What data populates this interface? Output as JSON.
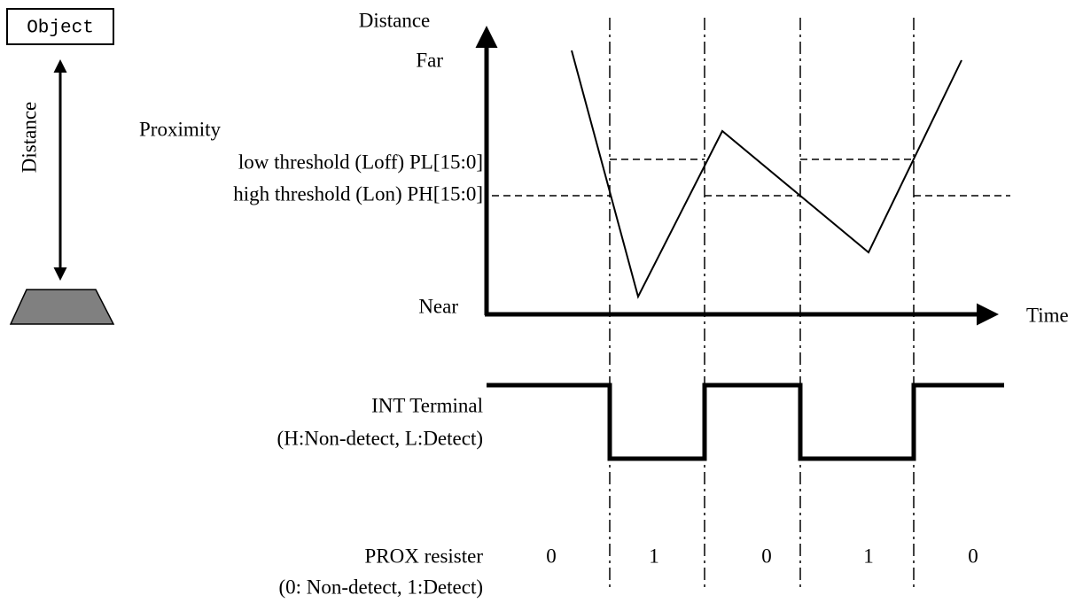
{
  "object_label": "Object",
  "left_axis_label": "Distance",
  "graph": {
    "y_axis_label": "Distance",
    "far_label": "Far",
    "near_label": "Near",
    "x_axis_label": "Time",
    "proximity_label": "Proximity",
    "low_threshold_label": "low threshold (Loff) PL[15:0]",
    "high_threshold_label": "high threshold (Lon) PH[15:0]"
  },
  "int_terminal": {
    "label": "INT Terminal",
    "sublabel": "(H:Non-detect, L:Detect)"
  },
  "prox_register": {
    "label": "PROX resister",
    "sublabel": "(0: Non-detect, 1:Detect)",
    "states": [
      "0",
      "1",
      "0",
      "1",
      "0"
    ]
  }
}
